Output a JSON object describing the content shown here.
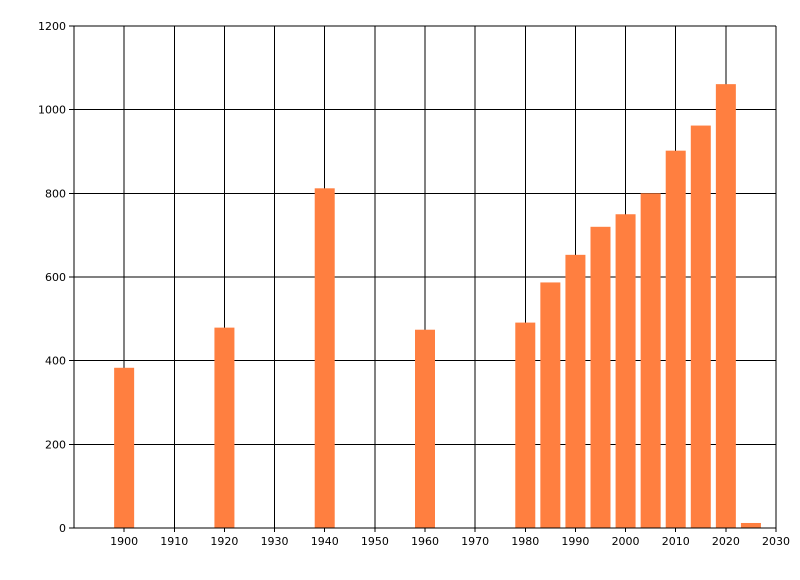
{
  "chart_data": {
    "type": "bar",
    "title": "",
    "xlabel": "",
    "ylabel": "",
    "bar_color": "#FF7F40",
    "grid_color": "#000000",
    "grid": true,
    "xlim": [
      1890,
      2030
    ],
    "ylim": [
      0,
      1200
    ],
    "x_ticks": [
      "1900",
      "1910",
      "1920",
      "1930",
      "1940",
      "1950",
      "1960",
      "1970",
      "1980",
      "1990",
      "2000",
      "2010",
      "2020",
      "2030"
    ],
    "y_ticks": [
      "0",
      "200",
      "400",
      "600",
      "800",
      "1000",
      "1200"
    ],
    "x": [
      1900,
      1920,
      1940,
      1960,
      1980,
      1985,
      1990,
      1995,
      2000,
      2005,
      2010,
      2015,
      2020,
      2025
    ],
    "values": [
      383,
      479,
      812,
      474,
      491,
      587,
      653,
      720,
      750,
      800,
      902,
      962,
      1061,
      12
    ]
  }
}
